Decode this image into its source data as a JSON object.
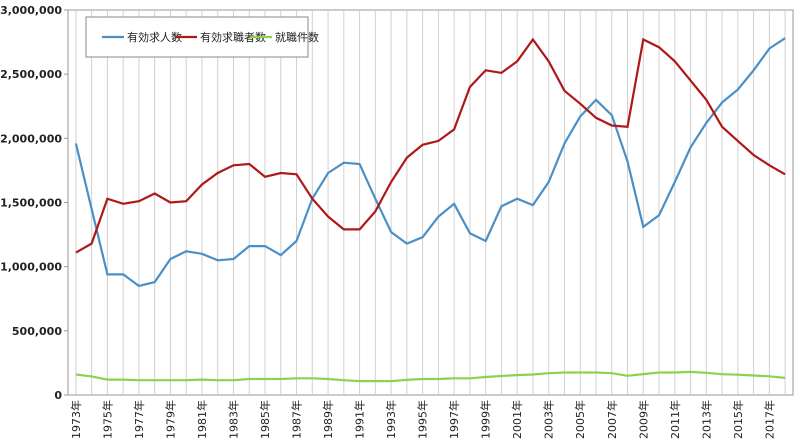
{
  "chart_data": {
    "type": "line",
    "categories": [
      "1973年",
      null,
      "1975年",
      null,
      "1977年",
      null,
      "1979年",
      null,
      "1981年",
      null,
      "1983年",
      null,
      "1985年",
      null,
      "1987年",
      null,
      "1989年",
      null,
      "1991年",
      null,
      "1993年",
      null,
      "1995年",
      null,
      "1997年",
      null,
      "1999年",
      null,
      "2001年",
      null,
      "2003年",
      null,
      "2005年",
      null,
      "2007年",
      null,
      "2009年",
      null,
      "2011年",
      null,
      "2013年",
      null,
      "2015年",
      null,
      "2017年",
      null
    ],
    "series": [
      {
        "name": "有効求人数",
        "color": "#4a90c8",
        "values": [
          1960000,
          1450000,
          940000,
          940000,
          850000,
          880000,
          1060000,
          1120000,
          1100000,
          1050000,
          1060000,
          1160000,
          1160000,
          1090000,
          1200000,
          1530000,
          1730000,
          1810000,
          1800000,
          1530000,
          1270000,
          1180000,
          1230000,
          1390000,
          1490000,
          1260000,
          1200000,
          1470000,
          1530000,
          1480000,
          1660000,
          1960000,
          2170000,
          2300000,
          2180000,
          1820000,
          1310000,
          1400000,
          1660000,
          1930000,
          2120000,
          2280000,
          2380000,
          2530000,
          2700000,
          2780000
        ]
      },
      {
        "name": "有効求職者数",
        "color": "#b01818",
        "values": [
          1110000,
          1180000,
          1530000,
          1490000,
          1510000,
          1570000,
          1500000,
          1510000,
          1640000,
          1730000,
          1790000,
          1800000,
          1700000,
          1730000,
          1720000,
          1530000,
          1390000,
          1290000,
          1290000,
          1430000,
          1660000,
          1850000,
          1950000,
          1980000,
          2070000,
          2400000,
          2530000,
          2510000,
          2600000,
          2770000,
          2600000,
          2370000,
          2270000,
          2160000,
          2100000,
          2090000,
          2770000,
          2710000,
          2600000,
          2450000,
          2300000,
          2090000,
          1980000,
          1870000,
          1790000,
          1720000
        ]
      },
      {
        "name": "就職件数",
        "color": "#8fd14f",
        "values": [
          160000,
          145000,
          120000,
          120000,
          115000,
          115000,
          115000,
          115000,
          120000,
          115000,
          115000,
          125000,
          125000,
          125000,
          130000,
          130000,
          125000,
          115000,
          108000,
          108000,
          108000,
          118000,
          125000,
          125000,
          130000,
          130000,
          140000,
          148000,
          155000,
          160000,
          170000,
          175000,
          175000,
          175000,
          170000,
          150000,
          163000,
          175000,
          175000,
          180000,
          173000,
          162000,
          158000,
          152000,
          146000,
          133000
        ]
      }
    ],
    "ylim": [
      0,
      3000000
    ],
    "yticks": [
      0,
      {
        "value": 500000,
        "label": "500,000"
      },
      {
        "value": 1000000,
        "label": "1,000,000"
      },
      {
        "value": 1500000,
        "label": "1,500,000"
      },
      {
        "value": 2000000,
        "label": "2,000,000"
      },
      {
        "value": 2500000,
        "label": "2,500,000"
      },
      {
        "value": 3000000,
        "label": "3,000,000"
      }
    ],
    "xgrid": true,
    "legend": "top-left"
  }
}
